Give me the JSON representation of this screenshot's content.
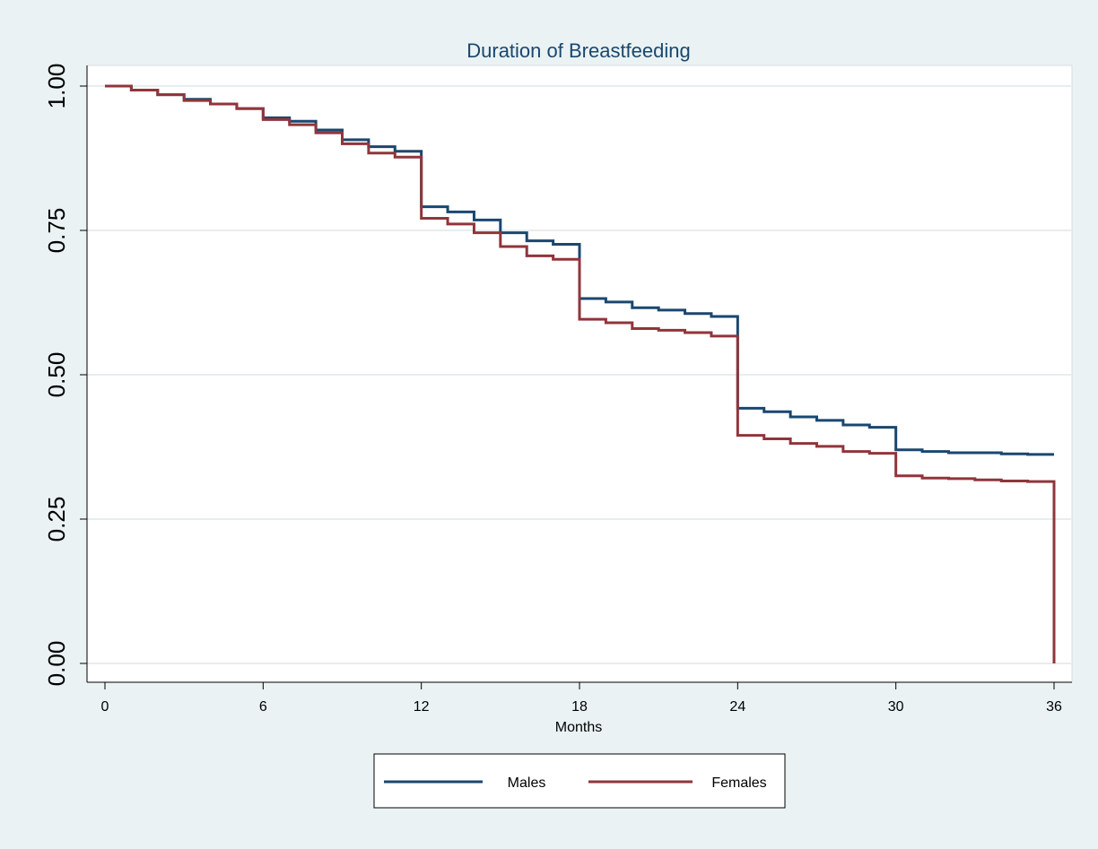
{
  "chart_data": {
    "type": "line",
    "step": true,
    "title": "Duration of Breastfeeding",
    "xlabel": "Months",
    "ylabel": "",
    "xlim": [
      0,
      36
    ],
    "ylim": [
      0,
      1
    ],
    "xticks": [
      0,
      6,
      12,
      18,
      24,
      30,
      36
    ],
    "yticks": [
      "0.00",
      "0.25",
      "0.50",
      "0.75",
      "1.00"
    ],
    "ytick_values": [
      0,
      0.25,
      0.5,
      0.75,
      1.0
    ],
    "grid": true,
    "legend_position": "bottom",
    "series": [
      {
        "name": "Males",
        "color": "#1a476f",
        "x": [
          0,
          1,
          2,
          3,
          4,
          5,
          6,
          7,
          8,
          9,
          10,
          11,
          12,
          13,
          14,
          15,
          16,
          17,
          18,
          19,
          20,
          21,
          22,
          23,
          24,
          25,
          26,
          27,
          28,
          29,
          30,
          31,
          32,
          33,
          34,
          35,
          36
        ],
        "y": [
          1.0,
          0.993,
          0.985,
          0.977,
          0.969,
          0.961,
          0.945,
          0.939,
          0.924,
          0.907,
          0.895,
          0.887,
          0.791,
          0.782,
          0.768,
          0.746,
          0.732,
          0.726,
          0.632,
          0.626,
          0.616,
          0.612,
          0.606,
          0.601,
          0.442,
          0.436,
          0.427,
          0.421,
          0.413,
          0.409,
          0.37,
          0.367,
          0.365,
          0.365,
          0.363,
          0.362,
          0.362
        ]
      },
      {
        "name": "Females",
        "color": "#90353b",
        "x": [
          0,
          1,
          2,
          3,
          4,
          5,
          6,
          7,
          8,
          9,
          10,
          11,
          12,
          13,
          14,
          15,
          16,
          17,
          18,
          19,
          20,
          21,
          22,
          23,
          24,
          25,
          26,
          27,
          28,
          29,
          30,
          31,
          32,
          33,
          34,
          35,
          36
        ],
        "y": [
          1.0,
          0.993,
          0.985,
          0.975,
          0.969,
          0.961,
          0.942,
          0.933,
          0.919,
          0.9,
          0.884,
          0.877,
          0.771,
          0.761,
          0.746,
          0.722,
          0.706,
          0.7,
          0.596,
          0.59,
          0.58,
          0.577,
          0.573,
          0.567,
          0.395,
          0.389,
          0.381,
          0.376,
          0.367,
          0.364,
          0.325,
          0.321,
          0.32,
          0.318,
          0.316,
          0.315,
          0.0
        ]
      }
    ]
  }
}
